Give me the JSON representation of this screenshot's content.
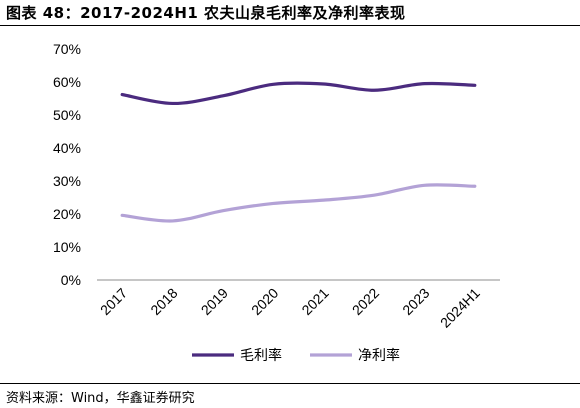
{
  "header": {
    "title": "图表 48：2017-2024H1 农夫山泉毛利率及净利率表现"
  },
  "footer": {
    "source": "资料来源：Wind，华鑫证券研究"
  },
  "chart_data": {
    "type": "line",
    "title": "",
    "xlabel": "",
    "ylabel": "",
    "categories": [
      "2017",
      "2018",
      "2019",
      "2020",
      "2021",
      "2022",
      "2023",
      "2024H1"
    ],
    "ylim": [
      0,
      70
    ],
    "yticks": [
      0,
      10,
      20,
      30,
      40,
      50,
      60,
      70
    ],
    "ytick_format": "%",
    "grid": false,
    "legend_position": "bottom",
    "series": [
      {
        "name": "毛利率",
        "color": "#4b2b7f",
        "values": [
          56.2,
          53.5,
          55.8,
          59.3,
          59.4,
          57.5,
          59.5,
          59.0
        ]
      },
      {
        "name": "净利率",
        "color": "#b3a2d6",
        "values": [
          19.6,
          17.9,
          21.0,
          23.2,
          24.2,
          25.7,
          28.7,
          28.4
        ]
      }
    ]
  }
}
